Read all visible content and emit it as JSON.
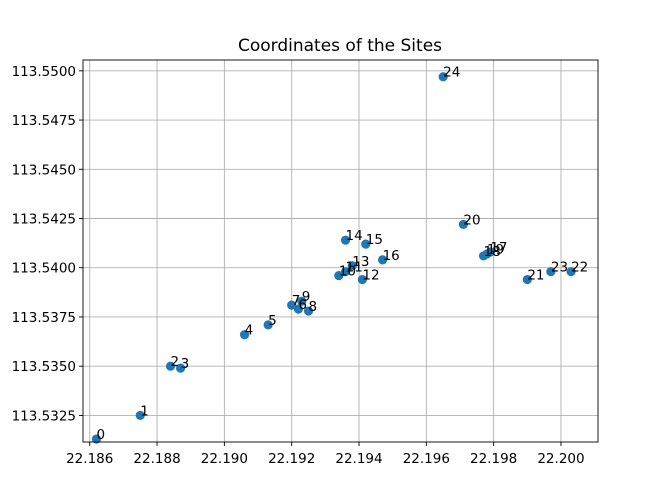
{
  "chart_data": {
    "type": "scatter",
    "title": "Coordinates of the Sites",
    "xlabel": "",
    "ylabel": "",
    "xlim": [
      22.1858,
      22.2011
    ],
    "ylim": [
      113.53115,
      113.55055
    ],
    "xticks": [
      "22.186",
      "22.188",
      "22.190",
      "22.192",
      "22.194",
      "22.196",
      "22.198",
      "22.200"
    ],
    "yticks": [
      "113.5325",
      "113.5350",
      "113.5375",
      "113.5400",
      "113.5425",
      "113.5450",
      "113.5475",
      "113.5500"
    ],
    "grid": true,
    "marker_color": "#1f77b4",
    "points": [
      {
        "label": "0",
        "x": 22.1862,
        "y": 113.5313
      },
      {
        "label": "1",
        "x": 22.1875,
        "y": 113.5325
      },
      {
        "label": "2",
        "x": 22.1884,
        "y": 113.535
      },
      {
        "label": "3",
        "x": 22.1887,
        "y": 113.5349
      },
      {
        "label": "4",
        "x": 22.1906,
        "y": 113.5366
      },
      {
        "label": "5",
        "x": 22.1913,
        "y": 113.5371
      },
      {
        "label": "6",
        "x": 22.1922,
        "y": 113.5379
      },
      {
        "label": "7",
        "x": 22.192,
        "y": 113.5381
      },
      {
        "label": "8",
        "x": 22.1925,
        "y": 113.5378
      },
      {
        "label": "9",
        "x": 22.1923,
        "y": 113.5383
      },
      {
        "label": "10",
        "x": 22.1934,
        "y": 113.5396
      },
      {
        "label": "11",
        "x": 22.1936,
        "y": 113.5398
      },
      {
        "label": "12",
        "x": 22.1941,
        "y": 113.5394
      },
      {
        "label": "13",
        "x": 22.1938,
        "y": 113.5401
      },
      {
        "label": "14",
        "x": 22.1936,
        "y": 113.5414
      },
      {
        "label": "15",
        "x": 22.1942,
        "y": 113.5412
      },
      {
        "label": "16",
        "x": 22.1947,
        "y": 113.5404
      },
      {
        "label": "17",
        "x": 22.1979,
        "y": 113.5408
      },
      {
        "label": "18",
        "x": 22.1977,
        "y": 113.5406
      },
      {
        "label": "19",
        "x": 22.1978,
        "y": 113.5407
      },
      {
        "label": "20",
        "x": 22.1971,
        "y": 113.5422
      },
      {
        "label": "21",
        "x": 22.199,
        "y": 113.5394
      },
      {
        "label": "22",
        "x": 22.2003,
        "y": 113.5398
      },
      {
        "label": "23",
        "x": 22.1997,
        "y": 113.5398
      },
      {
        "label": "24",
        "x": 22.1965,
        "y": 113.5497
      }
    ]
  }
}
